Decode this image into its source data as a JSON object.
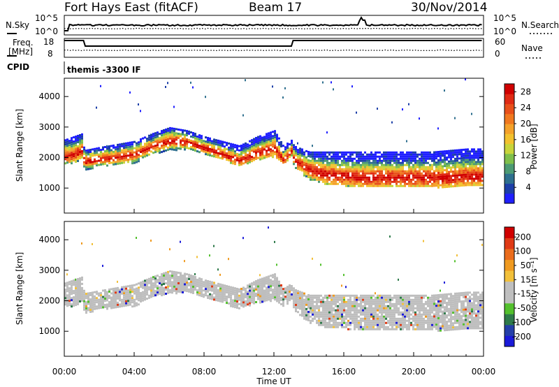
{
  "header": {
    "station": "Fort Hays East (fitACF)",
    "beam": "Beam 17",
    "date": "30/Nov/2014"
  },
  "status_panel": {
    "nsky_label": "N.Sky",
    "nsky_tick_top": "10^5",
    "nsky_tick_bottom": "10^0",
    "nsearch_label": "N.Search",
    "nsearch_tick_top": "10^5",
    "nsearch_tick_bottom": "10^0",
    "freq_label_1": "Freq.",
    "freq_label_2": "[MHz]",
    "freq_tick_top": "18",
    "freq_tick_bottom": "8",
    "nave_label": "Nave",
    "nave_tick_top": "60",
    "nave_tick_bottom": "0",
    "cpid_label": "CPID",
    "cpid_value": "themis -3300 IF"
  },
  "colors": {
    "power_scale": [
      "#1f1fff",
      "#1d3fa8",
      "#2e6f8e",
      "#4c9a73",
      "#7fbf4b",
      "#c8d43a",
      "#f2c12e",
      "#f4a12a",
      "#f0781f",
      "#e8501a",
      "#e02a14",
      "#d00000"
    ],
    "velocity_scale": [
      "#1a1ad9",
      "#243fa8",
      "#2e7a4a",
      "#53c02d",
      "#bfbfbf",
      "#bfbfbf",
      "#f2c03a",
      "#ef9a20",
      "#ea6c1c",
      "#e03a15",
      "#d00000"
    ],
    "ground_scatter": "#bebebe"
  },
  "chart_data": [
    {
      "type": "heatmap",
      "title": "",
      "xlabel": "Time UT",
      "ylabel": "Slant Range [km]",
      "x_ticks": [
        "00:00",
        "04:00",
        "08:00",
        "12:00",
        "16:00",
        "20:00",
        "00:00"
      ],
      "y_ticks": [
        "1000",
        "2000",
        "3000",
        "4000"
      ],
      "ylim": [
        180,
        4600
      ],
      "xlim_hours": [
        0,
        24
      ],
      "colorbar": {
        "label": "Power [dB]",
        "ticks": [
          "4",
          "8",
          "12",
          "16",
          "20",
          "24",
          "28"
        ],
        "range": [
          0,
          30
        ]
      },
      "scatter_band": {
        "hours": [
          0,
          0.5,
          1.0,
          1.1,
          2,
          3,
          4,
          5,
          6,
          7,
          8,
          9,
          10,
          11,
          12,
          12.5,
          13,
          13.1,
          14,
          15,
          16,
          17,
          18,
          19,
          20,
          21,
          22,
          23,
          24
        ],
        "lower_km": [
          1800,
          1850,
          2000,
          1600,
          1750,
          1800,
          1850,
          2150,
          2250,
          2300,
          2150,
          1950,
          1750,
          1950,
          2050,
          1800,
          2100,
          1700,
          1300,
          1150,
          1100,
          1050,
          1050,
          1050,
          1050,
          1050,
          1050,
          1100,
          1100
        ],
        "peak_km": [
          2100,
          2150,
          2300,
          1900,
          2000,
          2050,
          2150,
          2400,
          2600,
          2550,
          2350,
          2150,
          1950,
          2200,
          2350,
          1950,
          2300,
          1950,
          1650,
          1500,
          1450,
          1400,
          1400,
          1400,
          1400,
          1400,
          1400,
          1450,
          1450
        ],
        "upper_km": [
          2600,
          2700,
          2800,
          2250,
          2350,
          2450,
          2550,
          2800,
          3000,
          2900,
          2700,
          2550,
          2400,
          2700,
          2900,
          2400,
          2600,
          2400,
          2200,
          2200,
          2200,
          2200,
          2200,
          2200,
          2200,
          2200,
          2250,
          2300,
          2300
        ]
      }
    },
    {
      "type": "heatmap",
      "title": "",
      "xlabel": "Time UT",
      "ylabel": "Slant Range [km]",
      "x_ticks": [
        "00:00",
        "04:00",
        "08:00",
        "12:00",
        "16:00",
        "20:00",
        "00:00"
      ],
      "y_ticks": [
        "1000",
        "2000",
        "3000",
        "4000"
      ],
      "ylim": [
        180,
        4600
      ],
      "xlim_hours": [
        0,
        24
      ],
      "colorbar": {
        "label": "Velocity [m s⁻¹]",
        "ticks": [
          "200",
          "100",
          "50",
          "15",
          "-15",
          "-50",
          "-100",
          "-200"
        ],
        "range": [
          -250,
          250
        ]
      }
    }
  ]
}
